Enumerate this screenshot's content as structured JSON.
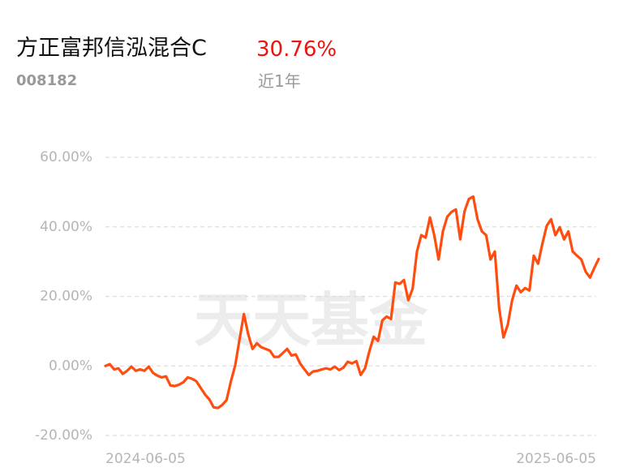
{
  "chart_data": {
    "type": "line",
    "title": "方正富邦信泓混合C",
    "code": "008182",
    "return_text": "30.76%",
    "period": "近1年",
    "watermark": "天天基金",
    "categories": [
      "2024-06-05",
      null,
      null,
      null,
      null,
      null,
      null,
      null,
      null,
      null,
      null,
      null,
      null,
      null,
      null,
      null,
      null,
      null,
      null,
      null,
      null,
      null,
      null,
      null,
      null,
      null,
      null,
      null,
      null,
      null,
      null,
      null,
      null,
      null,
      null,
      null,
      null,
      null,
      null,
      null,
      null,
      null,
      null,
      null,
      null,
      null,
      null,
      null,
      null,
      null,
      null,
      null,
      null,
      null,
      null,
      null,
      null,
      null,
      null,
      null,
      null,
      null,
      null,
      null,
      null,
      null,
      null,
      null,
      null,
      null,
      null,
      null,
      null,
      null,
      null,
      null,
      null,
      null,
      null,
      null,
      null,
      null,
      null,
      null,
      null,
      null,
      null,
      null,
      null,
      null,
      null,
      null,
      null,
      null,
      null,
      null,
      null,
      null,
      null,
      null,
      null,
      null,
      null,
      null,
      null,
      null,
      null,
      null,
      null,
      null,
      null,
      null,
      null,
      null,
      "2025-06-05"
    ],
    "values": [
      0,
      0.5,
      -1,
      -0.7,
      -2.3,
      -1.4,
      -0.2,
      -1.4,
      -1,
      -1.4,
      -0.2,
      -2,
      -2.8,
      -3.3,
      -3,
      -5.6,
      -5.8,
      -5.4,
      -4.7,
      -3.3,
      -3.7,
      -4.4,
      -6.3,
      -8.2,
      -9.6,
      -11.9,
      -12.1,
      -11.2,
      -9.8,
      -4.4,
      0.2,
      7.7,
      14.9,
      9.1,
      4.9,
      6.5,
      5.4,
      4.9,
      4.4,
      2.6,
      2.6,
      3.7,
      4.9,
      3,
      3.3,
      0.7,
      -1,
      -2.6,
      -1.6,
      -1.4,
      -1,
      -0.7,
      -1,
      -0.2,
      -1.2,
      -0.5,
      1.2,
      0.7,
      1.4,
      -2.6,
      -0.7,
      4.2,
      8.4,
      7.2,
      13.1,
      14.2,
      13.5,
      24,
      23.6,
      24.7,
      18.9,
      22.2,
      32.9,
      37.6,
      36.9,
      42.7,
      37.6,
      30.6,
      38.7,
      42.9,
      44.3,
      45,
      36.4,
      44.5,
      48,
      48.7,
      42.2,
      38.7,
      37.6,
      30.6,
      32.9,
      16.6,
      8.2,
      11.9,
      18.9,
      23.1,
      21.2,
      22.4,
      21.7,
      31.7,
      29.4,
      35.2,
      40.3,
      42.2,
      37.6,
      39.9,
      36.4,
      38.7,
      32.9,
      31.7,
      30.6,
      27.1,
      25.4,
      28.2,
      30.76
    ],
    "color": "#ff4d0f",
    "ylim": [
      -20,
      60
    ],
    "yticks": [
      {
        "value": -20,
        "label": "-20.00%"
      },
      {
        "value": 0,
        "label": "0.00%"
      },
      {
        "value": 20,
        "label": "20.00%"
      },
      {
        "value": 40,
        "label": "40.00%"
      },
      {
        "value": 60,
        "label": "60.00%"
      }
    ],
    "grid": true
  }
}
